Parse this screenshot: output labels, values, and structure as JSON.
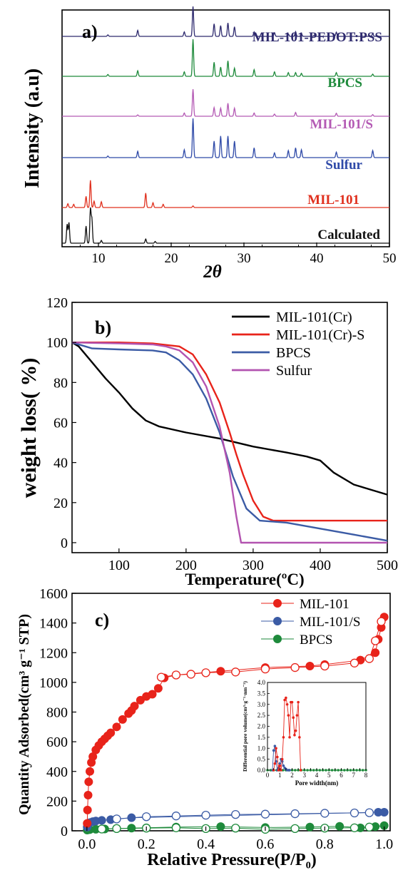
{
  "chart_data": [
    {
      "type": "line",
      "panel_label": "a)",
      "title": "",
      "xlabel": "2θ",
      "ylabel": "Intensity (a.u)",
      "xlim": [
        5,
        50
      ],
      "xticks": [
        10,
        20,
        30,
        40,
        50
      ],
      "grid": false,
      "series": [
        {
          "name": "MIL-101-PEDOT:PSS",
          "color": "#2e2a6e",
          "peaks": [
            [
              11.3,
              0.05
            ],
            [
              15.4,
              0.2
            ],
            [
              21.8,
              0.15
            ],
            [
              23.0,
              1.0
            ],
            [
              25.9,
              0.42
            ],
            [
              26.8,
              0.36
            ],
            [
              27.8,
              0.45
            ],
            [
              28.7,
              0.32
            ],
            [
              31.4,
              0.15
            ],
            [
              34.2,
              0.12
            ],
            [
              36.1,
              0.08
            ],
            [
              37.1,
              0.16
            ],
            [
              37.9,
              0.1
            ],
            [
              39.7,
              0.05
            ],
            [
              42.7,
              0.14
            ],
            [
              47.7,
              0.09
            ]
          ]
        },
        {
          "name": "BPCS",
          "color": "#1e8a3b",
          "peaks": [
            [
              11.3,
              0.05
            ],
            [
              15.4,
              0.15
            ],
            [
              21.8,
              0.12
            ],
            [
              23.0,
              1.0
            ],
            [
              25.9,
              0.38
            ],
            [
              26.8,
              0.25
            ],
            [
              27.8,
              0.42
            ],
            [
              28.7,
              0.22
            ],
            [
              31.4,
              0.18
            ],
            [
              34.2,
              0.12
            ],
            [
              36.1,
              0.1
            ],
            [
              37.1,
              0.1
            ],
            [
              37.9,
              0.08
            ],
            [
              42.7,
              0.1
            ],
            [
              47.7,
              0.06
            ]
          ]
        },
        {
          "name": "MIL-101/S",
          "color": "#b45ab4",
          "peaks": [
            [
              15.4,
              0.05
            ],
            [
              21.8,
              0.12
            ],
            [
              23.0,
              1.0
            ],
            [
              25.9,
              0.32
            ],
            [
              26.8,
              0.3
            ],
            [
              27.8,
              0.48
            ],
            [
              28.7,
              0.3
            ],
            [
              31.4,
              0.12
            ],
            [
              34.2,
              0.08
            ],
            [
              37.1,
              0.14
            ],
            [
              42.7,
              0.11
            ],
            [
              47.7,
              0.06
            ]
          ]
        },
        {
          "name": "Sulfur",
          "color": "#2f4aa8",
          "peaks": [
            [
              11.3,
              0.04
            ],
            [
              15.4,
              0.16
            ],
            [
              21.8,
              0.2
            ],
            [
              23.0,
              1.0
            ],
            [
              25.9,
              0.42
            ],
            [
              26.8,
              0.55
            ],
            [
              27.8,
              0.55
            ],
            [
              28.7,
              0.42
            ],
            [
              31.4,
              0.25
            ],
            [
              34.2,
              0.12
            ],
            [
              36.1,
              0.18
            ],
            [
              37.1,
              0.25
            ],
            [
              37.9,
              0.2
            ],
            [
              42.7,
              0.14
            ],
            [
              47.7,
              0.18
            ]
          ]
        },
        {
          "name": "MIL-101",
          "color": "#e0301e",
          "peaks": [
            [
              5.8,
              0.12
            ],
            [
              6.6,
              0.1
            ],
            [
              8.3,
              0.35
            ],
            [
              8.9,
              0.85
            ],
            [
              9.4,
              0.2
            ],
            [
              10.4,
              0.18
            ],
            [
              16.5,
              0.45
            ],
            [
              17.5,
              0.15
            ],
            [
              18.9,
              0.1
            ],
            [
              23.0,
              0.05
            ]
          ]
        },
        {
          "name": "Calculated",
          "color": "#111111",
          "peaks": [
            [
              5.7,
              0.55
            ],
            [
              5.95,
              0.6
            ],
            [
              8.3,
              0.5
            ],
            [
              8.9,
              1.0
            ],
            [
              9.1,
              0.7
            ],
            [
              10.4,
              0.08
            ],
            [
              16.5,
              0.12
            ],
            [
              17.8,
              0.05
            ]
          ]
        }
      ]
    },
    {
      "type": "line",
      "panel_label": "b)",
      "title": "",
      "xlabel": "Temperature(ºC)",
      "ylabel": "weight loss(   %)",
      "xlim": [
        30,
        500
      ],
      "ylim": [
        -5,
        120
      ],
      "xticks": [
        100,
        200,
        300,
        400,
        500
      ],
      "yticks": [
        0,
        20,
        40,
        60,
        80,
        100,
        120
      ],
      "legend": "top-right",
      "grid": false,
      "series": [
        {
          "name": "MIL-101(Cr)",
          "color": "#000000",
          "x": [
            30,
            40,
            60,
            80,
            100,
            120,
            140,
            160,
            200,
            250,
            300,
            350,
            380,
            400,
            420,
            450,
            480,
            500
          ],
          "y": [
            100,
            98,
            90,
            82,
            75,
            67,
            61,
            58,
            55,
            52,
            48,
            45,
            43,
            41,
            35,
            29,
            26,
            24
          ]
        },
        {
          "name": "MIL-101(Cr)-S",
          "color": "#e8231a",
          "x": [
            30,
            100,
            150,
            190,
            210,
            230,
            250,
            265,
            275,
            285,
            300,
            315,
            330,
            400,
            500
          ],
          "y": [
            100,
            100,
            99.5,
            98,
            94,
            84,
            70,
            55,
            44,
            34,
            21,
            13,
            11,
            11,
            11
          ]
        },
        {
          "name": "BPCS",
          "color": "#3b5ba5",
          "x": [
            30,
            60,
            100,
            150,
            170,
            190,
            210,
            230,
            250,
            270,
            290,
            310,
            350,
            400,
            450,
            500
          ],
          "y": [
            100,
            97,
            96.5,
            96,
            95,
            91,
            84,
            72,
            55,
            33,
            17,
            11,
            10,
            7,
            4,
            1
          ]
        },
        {
          "name": "Sulfur",
          "color": "#b354b0",
          "x": [
            30,
            100,
            150,
            170,
            190,
            210,
            230,
            250,
            265,
            275,
            282,
            285,
            500
          ],
          "y": [
            100,
            99.5,
            99,
            98,
            96,
            90,
            78,
            58,
            35,
            13,
            0,
            0,
            0
          ]
        }
      ]
    },
    {
      "type": "scatter",
      "panel_label": "c)",
      "title": "",
      "xlabel": "Relative Pressure(P/P₀)",
      "ylabel": "Quantity Adsorbed(cm³ g⁻¹ STP)",
      "xlim": [
        -0.05,
        1.02
      ],
      "ylim": [
        0,
        1600
      ],
      "xticks": [
        0.0,
        0.2,
        0.4,
        0.6,
        0.8,
        1.0
      ],
      "yticks": [
        0,
        200,
        400,
        600,
        800,
        1000,
        1200,
        1400,
        1600
      ],
      "legend": "top-right",
      "series": [
        {
          "name": "MIL-101",
          "color": "#e8231a",
          "adsorption": {
            "x": [
              0.001,
              0.002,
              0.004,
              0.006,
              0.01,
              0.015,
              0.02,
              0.03,
              0.04,
              0.05,
              0.06,
              0.07,
              0.08,
              0.1,
              0.12,
              0.14,
              0.15,
              0.16,
              0.18,
              0.2,
              0.22,
              0.24,
              0.26,
              0.3,
              0.45,
              0.6,
              0.75,
              0.8,
              0.92,
              0.97,
              0.98,
              0.99,
              1.0
            ],
            "y": [
              50,
              140,
              240,
              330,
              400,
              460,
              500,
              545,
              575,
              600,
              620,
              640,
              660,
              700,
              750,
              790,
              810,
              840,
              880,
              905,
              920,
              960,
              1030,
              1050,
              1075,
              1100,
              1110,
              1120,
              1150,
              1200,
              1290,
              1370,
              1440
            ]
          },
          "desorption": {
            "x": [
              0.25,
              0.3,
              0.35,
              0.4,
              0.5,
              0.6,
              0.7,
              0.8,
              0.9,
              0.95,
              0.97,
              0.99
            ],
            "y": [
              1035,
              1050,
              1055,
              1065,
              1070,
              1090,
              1100,
              1110,
              1130,
              1160,
              1280,
              1410
            ]
          }
        },
        {
          "name": "MIL-101/S",
          "color": "#3b5ba5",
          "adsorption": {
            "x": [
              0.001,
              0.005,
              0.01,
              0.02,
              0.03,
              0.05,
              0.08,
              0.15,
              0.98,
              1.0
            ],
            "y": [
              25,
              45,
              55,
              62,
              66,
              70,
              75,
              88,
              125,
              125
            ]
          },
          "desorption": {
            "x": [
              0.1,
              0.2,
              0.3,
              0.4,
              0.5,
              0.6,
              0.7,
              0.8,
              0.9,
              0.95
            ],
            "y": [
              80,
              95,
              100,
              105,
              110,
              112,
              115,
              118,
              120,
              122
            ]
          }
        },
        {
          "name": "BPCS",
          "color": "#1e8a3b",
          "adsorption": {
            "x": [
              0.001,
              0.01,
              0.03,
              0.06,
              0.1,
              0.15,
              0.2,
              0.3,
              0.45,
              0.6,
              0.75,
              0.85,
              0.92,
              0.97,
              1.0
            ],
            "y": [
              5,
              8,
              10,
              12,
              15,
              18,
              20,
              25,
              28,
              22,
              25,
              30,
              20,
              28,
              35
            ]
          },
          "desorption": {
            "x": [
              0.05,
              0.1,
              0.2,
              0.3,
              0.4,
              0.5,
              0.6,
              0.7,
              0.8,
              0.9,
              0.95
            ],
            "y": [
              12,
              15,
              18,
              20,
              15,
              18,
              10,
              15,
              18,
              20,
              25
            ]
          }
        }
      ],
      "inset": {
        "xlabel": "Pore width(nm)",
        "ylabel": "Differential pore volume(cm³·g⁻¹·nm⁻¹)",
        "xlim": [
          0,
          8
        ],
        "ylim": [
          0,
          4.0
        ],
        "xticks": [
          0,
          0.5,
          1,
          1.5,
          2,
          2.5,
          3,
          3.5,
          4,
          4.5,
          5,
          5.5,
          6,
          6.5,
          7,
          7.5,
          8
        ],
        "xtick_labels": [
          "0",
          "",
          "1",
          "",
          "2",
          "",
          "3",
          "",
          "4",
          "",
          "5",
          "",
          "6",
          "",
          "7",
          "",
          "8"
        ],
        "yticks": [
          0,
          0.5,
          1.0,
          1.5,
          2.0,
          2.5,
          3.0,
          3.5,
          4.0
        ],
        "ytick_labels": [
          "0.0",
          "0.5",
          "1.0",
          "1.5",
          "2.0",
          "2.5",
          "3.0",
          "3.5",
          "4.0"
        ],
        "series": [
          {
            "name": "MIL-101",
            "color": "#e8231a",
            "x": [
              0.5,
              0.6,
              0.7,
              0.8,
              0.9,
              1.0,
              1.1,
              1.2,
              1.3,
              1.4,
              1.5,
              1.6,
              1.7,
              1.8,
              1.9,
              2.0,
              2.1,
              2.2,
              2.3,
              2.4,
              2.5,
              2.6,
              2.7
            ],
            "y": [
              0,
              0.3,
              1.0,
              0.6,
              0,
              0.2,
              0,
              0.5,
              1.5,
              3.2,
              3.3,
              3.0,
              2.5,
              1.5,
              3.1,
              3.1,
              2.4,
              1.6,
              1.8,
              2.5,
              3.1,
              1.5,
              0
            ]
          },
          {
            "name": "MIL-101/S",
            "color": "#3b5ba5",
            "x": [
              0.4,
              0.5,
              0.6,
              0.7,
              0.8,
              0.9,
              1.0,
              1.1,
              1.2,
              1.3,
              1.4,
              1.5,
              1.6,
              1.7,
              1.8
            ],
            "y": [
              0,
              0.9,
              1.1,
              0.4,
              0,
              0.1,
              0.3,
              0.5,
              0.4,
              0.2,
              0.1,
              0.05,
              0,
              0,
              0
            ]
          },
          {
            "name": "BPCS",
            "color": "#1e8a3b",
            "x": [
              0,
              0.25,
              0.5,
              0.75,
              1,
              1.25,
              1.5,
              1.75,
              2,
              2.25,
              2.5,
              2.75,
              3,
              3.25,
              3.5,
              3.75,
              4,
              4.25,
              4.5,
              4.75,
              5,
              5.25,
              5.5,
              5.75,
              6,
              6.25,
              6.5,
              6.75,
              7,
              7.25,
              7.5,
              7.75,
              8
            ],
            "y": [
              0,
              0,
              0,
              0,
              0,
              0,
              0,
              0,
              0,
              0,
              0,
              0,
              0,
              0,
              0,
              0,
              0,
              0,
              0,
              0,
              0,
              0,
              0,
              0,
              0,
              0,
              0,
              0,
              0,
              0,
              0,
              0,
              0
            ]
          }
        ]
      }
    }
  ]
}
